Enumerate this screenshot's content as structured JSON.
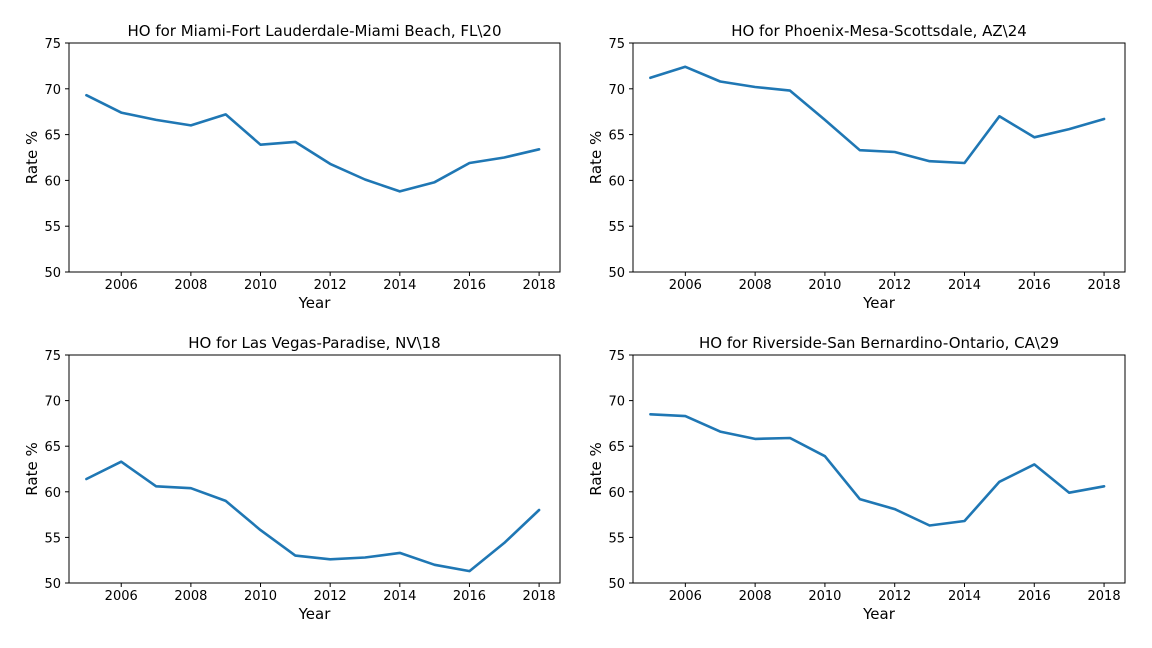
{
  "chart_data": [
    {
      "type": "line",
      "title": "HO for Miami-Fort Lauderdale-Miami Beach, FL\\20",
      "xlabel": "Year",
      "ylabel": "Rate %",
      "xlim": [
        2004.5,
        2018.6
      ],
      "ylim": [
        50,
        75
      ],
      "xticks": [
        2006,
        2008,
        2010,
        2012,
        2014,
        2016,
        2018
      ],
      "yticks": [
        50,
        55,
        60,
        65,
        70,
        75
      ],
      "grid": false,
      "color": "#1f77b4",
      "x": [
        2005,
        2006,
        2007,
        2008,
        2009,
        2010,
        2011,
        2012,
        2013,
        2014,
        2015,
        2016,
        2017,
        2018
      ],
      "values": [
        69.3,
        67.4,
        66.6,
        66.0,
        67.2,
        63.9,
        64.2,
        61.8,
        60.1,
        58.8,
        59.8,
        61.9,
        62.5,
        63.4
      ]
    },
    {
      "type": "line",
      "title": "HO for Phoenix-Mesa-Scottsdale, AZ\\24",
      "xlabel": "Year",
      "ylabel": "Rate %",
      "xlim": [
        2004.5,
        2018.6
      ],
      "ylim": [
        50,
        75
      ],
      "xticks": [
        2006,
        2008,
        2010,
        2012,
        2014,
        2016,
        2018
      ],
      "yticks": [
        50,
        55,
        60,
        65,
        70,
        75
      ],
      "grid": false,
      "color": "#1f77b4",
      "x": [
        2005,
        2006,
        2007,
        2008,
        2009,
        2010,
        2011,
        2012,
        2013,
        2014,
        2015,
        2016,
        2017,
        2018
      ],
      "values": [
        71.2,
        72.4,
        70.8,
        70.2,
        69.8,
        66.6,
        63.3,
        63.1,
        62.1,
        61.9,
        67.0,
        64.7,
        65.6,
        66.7
      ]
    },
    {
      "type": "line",
      "title": "HO for Las Vegas-Paradise, NV\\18",
      "xlabel": "Year",
      "ylabel": "Rate %",
      "xlim": [
        2004.5,
        2018.6
      ],
      "ylim": [
        50,
        75
      ],
      "xticks": [
        2006,
        2008,
        2010,
        2012,
        2014,
        2016,
        2018
      ],
      "yticks": [
        50,
        55,
        60,
        65,
        70,
        75
      ],
      "grid": false,
      "color": "#1f77b4",
      "x": [
        2005,
        2006,
        2007,
        2008,
        2009,
        2010,
        2011,
        2012,
        2013,
        2014,
        2015,
        2016,
        2017,
        2018
      ],
      "values": [
        61.4,
        63.3,
        60.6,
        60.4,
        59.0,
        55.8,
        53.0,
        52.6,
        52.8,
        53.3,
        52.0,
        51.3,
        54.4,
        58.0
      ]
    },
    {
      "type": "line",
      "title": "HO for Riverside-San Bernardino-Ontario, CA\\29",
      "xlabel": "Year",
      "ylabel": "Rate %",
      "xlim": [
        2004.5,
        2018.6
      ],
      "ylim": [
        50,
        75
      ],
      "xticks": [
        2006,
        2008,
        2010,
        2012,
        2014,
        2016,
        2018
      ],
      "yticks": [
        50,
        55,
        60,
        65,
        70,
        75
      ],
      "grid": false,
      "color": "#1f77b4",
      "x": [
        2005,
        2006,
        2007,
        2008,
        2009,
        2010,
        2011,
        2012,
        2013,
        2014,
        2015,
        2016,
        2017,
        2018
      ],
      "values": [
        68.5,
        68.3,
        66.6,
        65.8,
        65.9,
        63.9,
        59.2,
        58.1,
        56.3,
        56.8,
        61.1,
        63.0,
        59.9,
        60.6
      ]
    }
  ]
}
